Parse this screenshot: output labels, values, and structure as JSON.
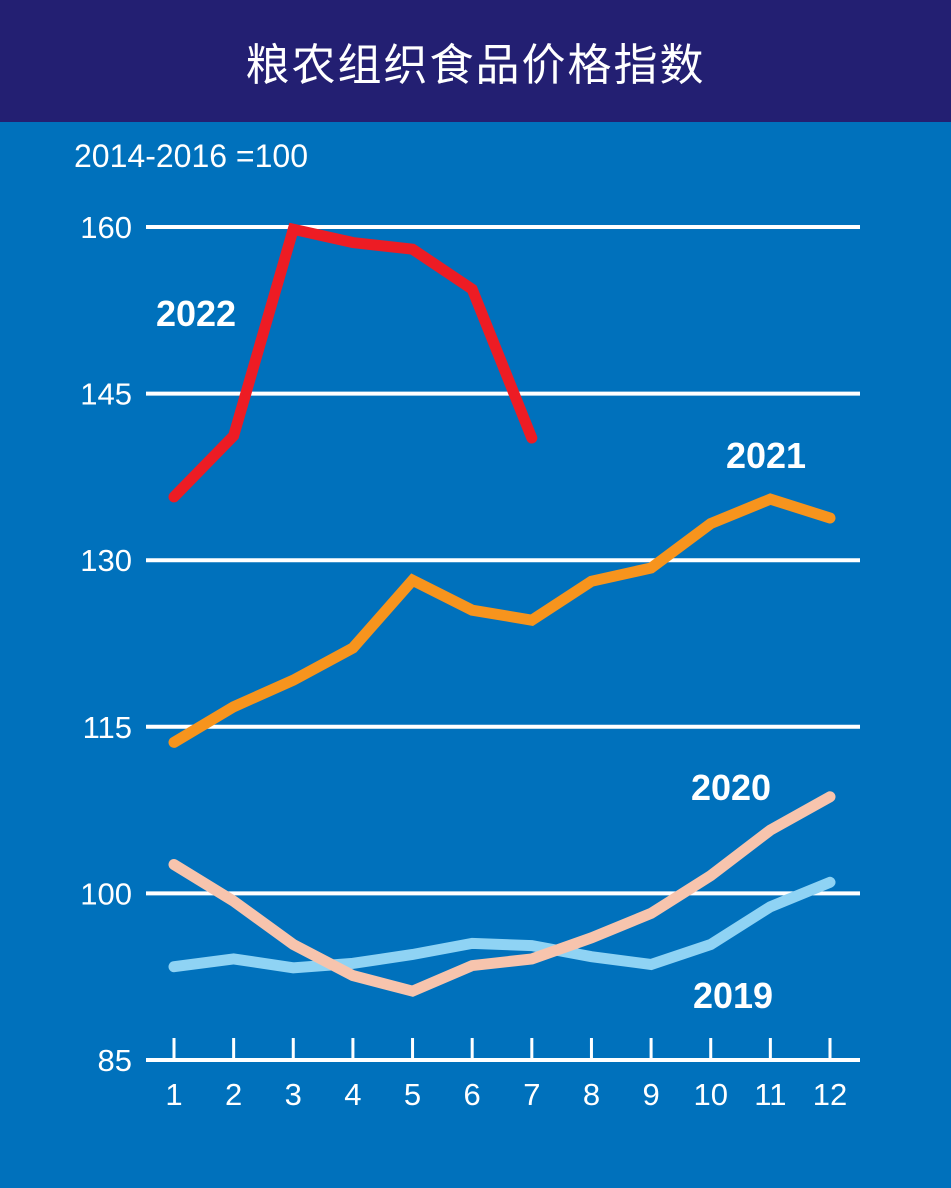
{
  "chart_data": {
    "type": "line",
    "title": "粮农组织食品价格指数",
    "subtitle": "2014-2016 =100",
    "xlabel": "",
    "ylabel": "",
    "x": [
      1,
      2,
      3,
      4,
      5,
      6,
      7,
      8,
      9,
      10,
      11,
      12
    ],
    "x_tick_labels": [
      "1",
      "2",
      "3",
      "4",
      "5",
      "6",
      "7",
      "8",
      "9",
      "10",
      "11",
      "12"
    ],
    "y_ticks": [
      85,
      100,
      115,
      130,
      145,
      160
    ],
    "y_tick_labels": [
      "85",
      "100",
      "115",
      "130",
      "145",
      "160"
    ],
    "ylim": [
      85,
      160
    ],
    "grid": true,
    "series": [
      {
        "name": "2019",
        "label": "2019",
        "color": "#8fd3f4",
        "values": [
          93.4,
          94.1,
          93.3,
          93.7,
          94.5,
          95.5,
          95.3,
          94.3,
          93.6,
          95.4,
          98.8,
          101.0
        ]
      },
      {
        "name": "2020",
        "label": "2020",
        "color": "#f7c4ad",
        "values": [
          102.6,
          99.3,
          95.4,
          92.6,
          91.2,
          93.5,
          94.1,
          96.0,
          98.2,
          101.6,
          105.7,
          108.7
        ]
      },
      {
        "name": "2021",
        "label": "2021",
        "color": "#f7941d",
        "values": [
          113.6,
          116.8,
          119.2,
          122.1,
          128.2,
          125.5,
          124.6,
          128.1,
          129.3,
          133.3,
          135.5,
          133.8
        ]
      },
      {
        "name": "2022",
        "label": "2022",
        "color": "#ed1c24",
        "values": [
          135.7,
          141.2,
          159.8,
          158.6,
          158.0,
          154.4,
          141.0
        ]
      }
    ]
  }
}
